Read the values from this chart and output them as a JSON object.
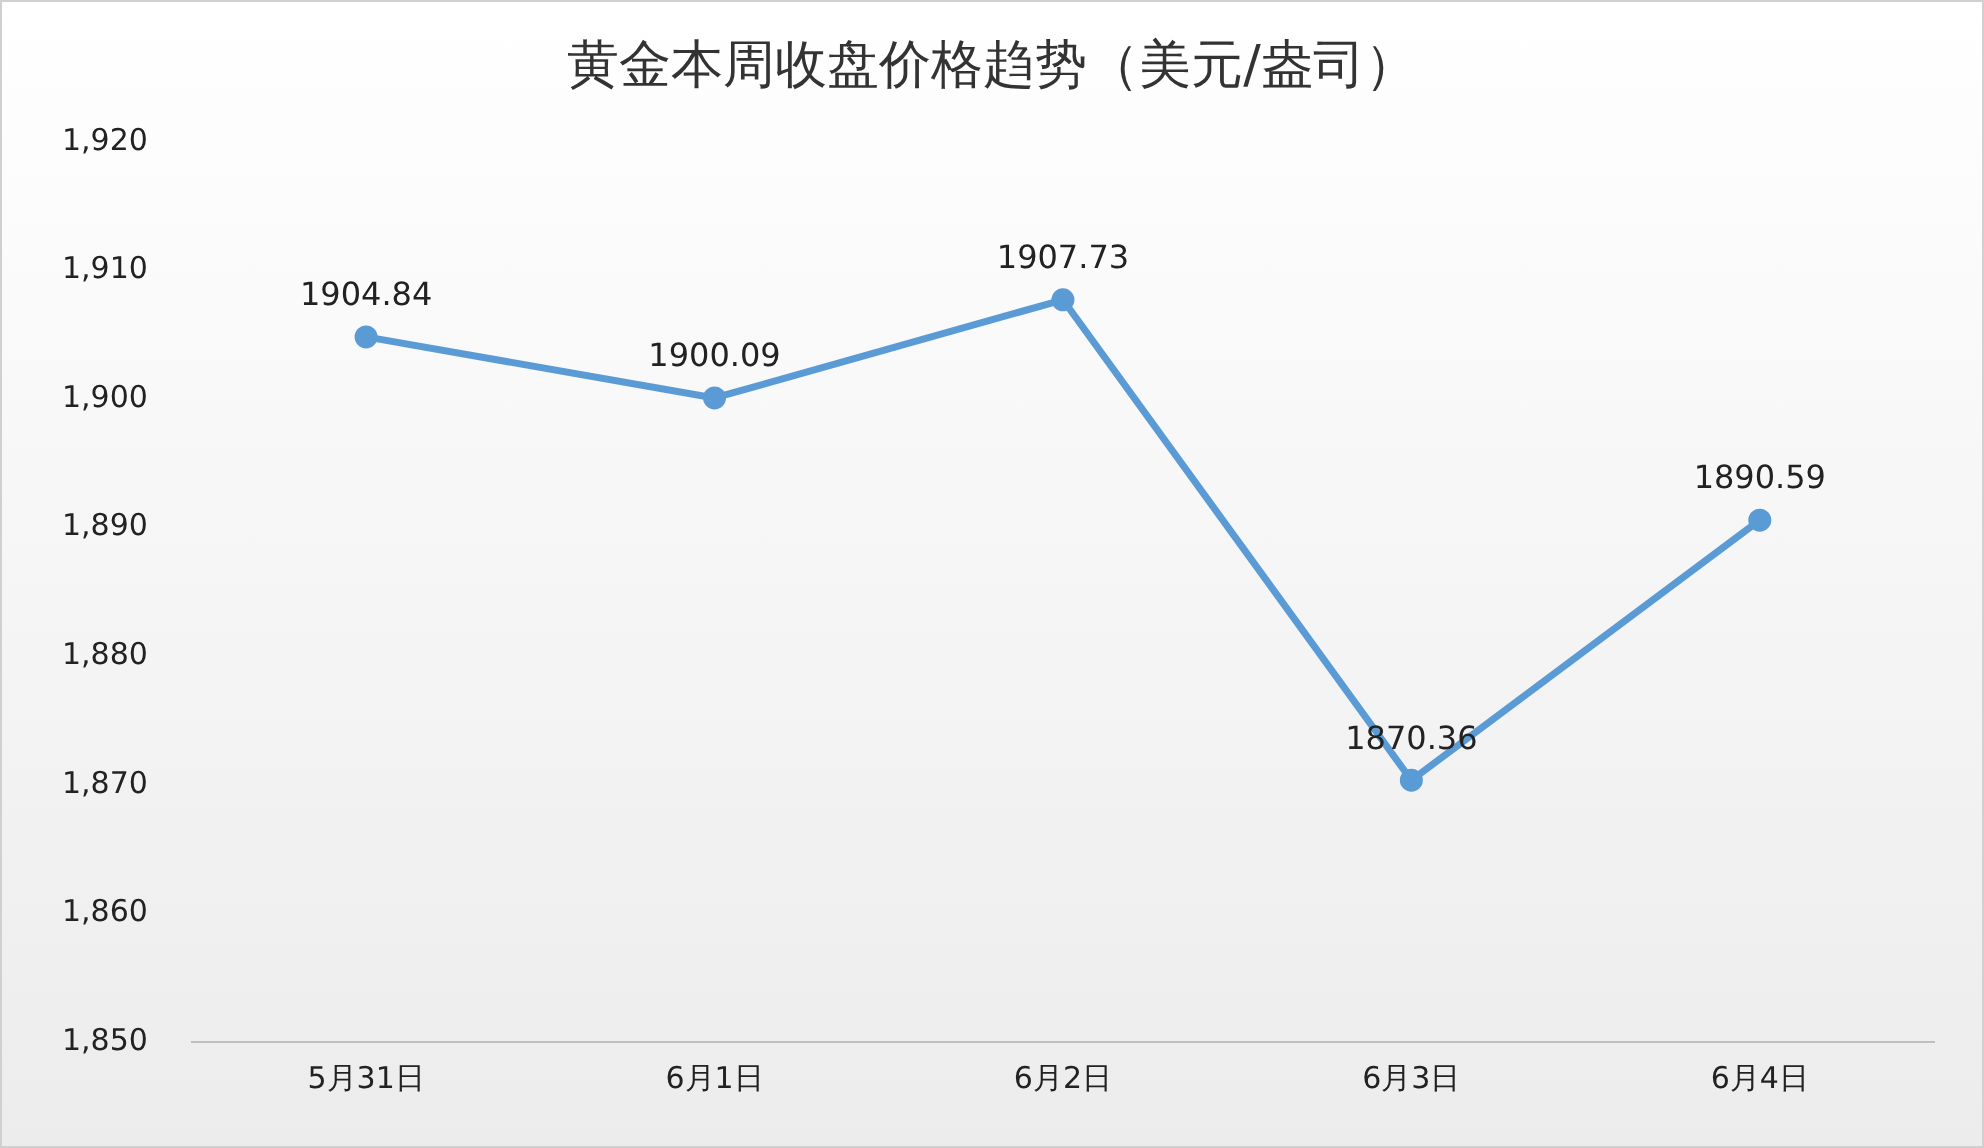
{
  "chart_data": {
    "type": "line",
    "title": "黄金本周收盘价格趋势（美元/盎司）",
    "categories": [
      "5月31日",
      "6月1日",
      "6月2日",
      "6月3日",
      "6月4日"
    ],
    "series": [
      {
        "color": "#5b9bd5",
        "values": [
          1904.84,
          1900.09,
          1907.73,
          1870.36,
          1890.59
        ]
      }
    ],
    "ylim": [
      1850,
      1920
    ],
    "yticks": [
      {
        "value": 1850,
        "label": "1,850"
      },
      {
        "value": 1860,
        "label": "1,860"
      },
      {
        "value": 1870,
        "label": "1,870"
      },
      {
        "value": 1880,
        "label": "1,880"
      },
      {
        "value": 1890,
        "label": "1,890"
      },
      {
        "value": 1900,
        "label": "1,900"
      },
      {
        "value": 1910,
        "label": "1,910"
      },
      {
        "value": 1920,
        "label": "1,920"
      }
    ],
    "grid": false,
    "legend": false,
    "marker": "circle",
    "line_style": "solid",
    "data_labels": true
  }
}
